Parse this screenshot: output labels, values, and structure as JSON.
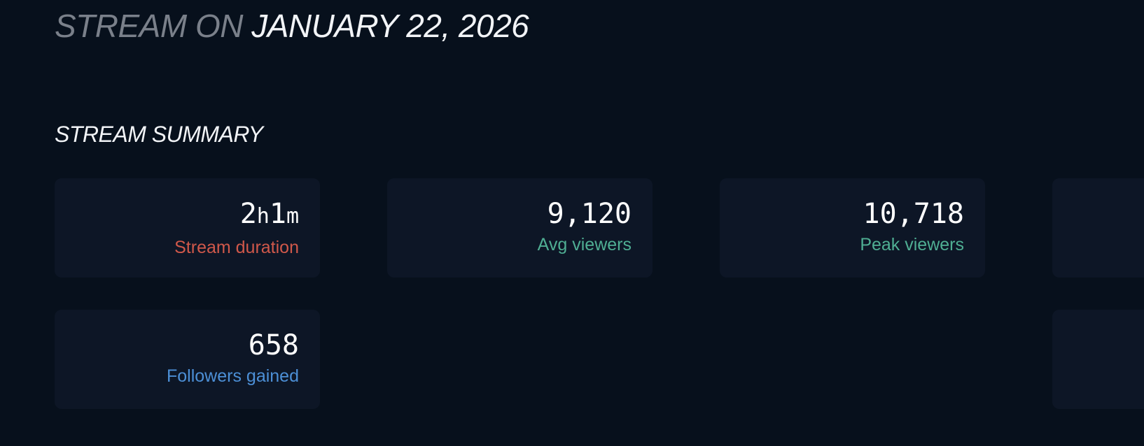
{
  "header": {
    "title_prefix": "STREAM ON",
    "title_date": "JANUARY 22, 2026"
  },
  "summary": {
    "heading": "STREAM SUMMARY",
    "duration": {
      "hours": "2",
      "hours_unit": "h",
      "minutes": "1",
      "minutes_unit": "m",
      "label": "Stream duration",
      "color": "#d0584a"
    },
    "cards": [
      {
        "value": "9,120",
        "label": "Avg viewers",
        "color": "#4fae93"
      },
      {
        "value": "10,718",
        "label": "Peak viewers",
        "color": "#4fae93"
      },
      {
        "value": "658",
        "label": "Followers gained",
        "color": "#4c8fd6"
      }
    ]
  }
}
